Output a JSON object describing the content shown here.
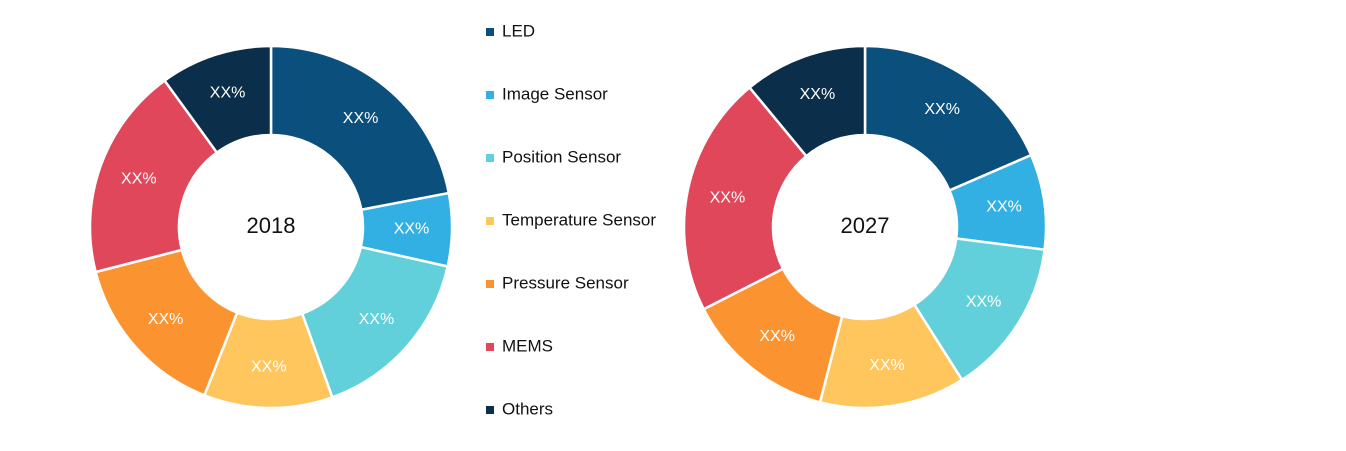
{
  "chart_data": [
    {
      "type": "donut",
      "title": "2018",
      "categories": [
        "LED",
        "Image Sensor",
        "Position Sensor",
        "Temperature Sensor",
        "Pressure Sensor",
        "MEMS",
        "Others"
      ],
      "values": [
        22,
        6.5,
        16,
        11.5,
        15,
        19,
        10
      ],
      "value_labels": [
        "XX%",
        "XX%",
        "XX%",
        "XX%",
        "XX%",
        "XX%",
        "XX%"
      ],
      "colors": [
        "#0b4f7c",
        "#33b0e3",
        "#62d0da",
        "#ffc65e",
        "#fb9430",
        "#e0475a",
        "#0b2e4a"
      ]
    },
    {
      "type": "donut",
      "title": "2027",
      "categories": [
        "LED",
        "Image Sensor",
        "Position Sensor",
        "Temperature Sensor",
        "Pressure Sensor",
        "MEMS",
        "Others"
      ],
      "values": [
        18.5,
        8.5,
        14,
        13,
        13.5,
        21.5,
        11
      ],
      "value_labels": [
        "XX%",
        "XX%",
        "XX%",
        "XX%",
        "XX%",
        "XX%",
        "XX%"
      ],
      "colors": [
        "#0b4f7c",
        "#33b0e3",
        "#62d0da",
        "#ffc65e",
        "#fb9430",
        "#e0475a",
        "#0b2e4a"
      ]
    }
  ]
}
